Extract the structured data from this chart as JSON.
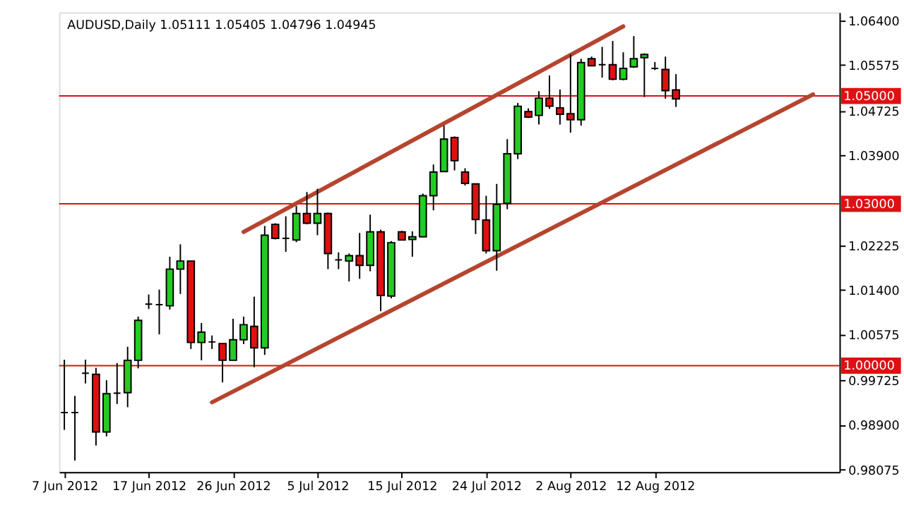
{
  "chart_data": {
    "type": "candlestick",
    "title": "AUDUSD,Daily  1.05111 1.05405 1.04796 1.04945",
    "categories": [
      "7 Jun 2012",
      null,
      null,
      null,
      null,
      null,
      null,
      null,
      "17 Jun 2012",
      null,
      null,
      null,
      null,
      null,
      null,
      null,
      "26 Jun 2012",
      null,
      null,
      null,
      null,
      null,
      null,
      null,
      "5 Jul 2012",
      null,
      null,
      null,
      null,
      null,
      null,
      null,
      "15 Jul 2012",
      null,
      null,
      null,
      null,
      null,
      null,
      null,
      "24 Jul 2012",
      null,
      null,
      null,
      null,
      null,
      null,
      null,
      "2 Aug 2012",
      null,
      null,
      null,
      null,
      null,
      null,
      null,
      "12 Aug 2012",
      null,
      null,
      null,
      null,
      null,
      null,
      null,
      null,
      null,
      null,
      null,
      null,
      null,
      null,
      null,
      null,
      null
    ],
    "ohlc": [
      [
        0.9913,
        1.0011,
        0.9881,
        0.9913
      ],
      [
        0.9913,
        0.9944,
        0.9824,
        0.9913
      ],
      [
        0.9986,
        1.0011,
        0.9967,
        0.9986
      ],
      [
        0.9984,
        0.9996,
        0.9852,
        0.9877
      ],
      [
        0.9877,
        0.9973,
        0.9869,
        0.9948
      ],
      [
        0.9949,
        1.0005,
        0.9929,
        0.9949
      ],
      [
        0.995,
        1.0035,
        0.9923,
        1.001
      ],
      [
        1.001,
        1.0091,
        0.9995,
        1.0084
      ],
      [
        1.0114,
        1.0132,
        1.0105,
        1.0114
      ],
      [
        1.0113,
        1.0141,
        1.0058,
        1.0113
      ],
      [
        1.0111,
        1.0202,
        1.0104,
        1.0179
      ],
      [
        1.0179,
        1.0225,
        1.0133,
        1.0194
      ],
      [
        1.0194,
        1.0194,
        1.0031,
        1.0043
      ],
      [
        1.0043,
        1.0079,
        1.001,
        1.0062
      ],
      [
        1.0044,
        1.0056,
        1.0031,
        1.0044
      ],
      [
        1.0041,
        1.0041,
        0.9969,
        1.001
      ],
      [
        1.001,
        1.0087,
        1.001,
        1.0048
      ],
      [
        1.0048,
        1.0091,
        1.004,
        1.0076
      ],
      [
        1.0073,
        1.0128,
        0.9997,
        1.0033
      ],
      [
        1.0033,
        1.0259,
        1.002,
        1.0242
      ],
      [
        1.0262,
        1.0264,
        1.0234,
        1.0236
      ],
      [
        1.0236,
        1.0277,
        1.0211,
        1.0236
      ],
      [
        1.0233,
        1.0296,
        1.0229,
        1.0282
      ],
      [
        1.0282,
        1.0322,
        1.0262,
        1.0264
      ],
      [
        1.0264,
        1.0328,
        1.0242,
        1.0282
      ],
      [
        1.0282,
        1.0284,
        1.0179,
        1.0208
      ],
      [
        1.0196,
        1.021,
        1.0179,
        1.0196
      ],
      [
        1.0194,
        1.0208,
        1.0156,
        1.0204
      ],
      [
        1.0204,
        1.0246,
        1.0161,
        1.0186
      ],
      [
        1.0186,
        1.028,
        1.0175,
        1.0248
      ],
      [
        1.0248,
        1.0252,
        1.0101,
        1.013
      ],
      [
        1.0129,
        1.0231,
        1.0125,
        1.0228
      ],
      [
        1.0248,
        1.025,
        1.0233,
        1.0233
      ],
      [
        1.0234,
        1.0249,
        1.0202,
        1.0239
      ],
      [
        1.0239,
        1.0319,
        1.0238,
        1.0315
      ],
      [
        1.0315,
        1.0373,
        1.0288,
        1.0359
      ],
      [
        1.036,
        1.0445,
        1.0359,
        1.042
      ],
      [
        1.0423,
        1.0425,
        1.0362,
        1.038
      ],
      [
        1.0359,
        1.0366,
        1.0334,
        1.0338
      ],
      [
        1.0337,
        1.0337,
        1.0244,
        1.0271
      ],
      [
        1.027,
        1.0315,
        1.0208,
        1.0213
      ],
      [
        1.0213,
        1.0337,
        1.0176,
        1.0299
      ],
      [
        1.0301,
        1.042,
        1.029,
        1.0393
      ],
      [
        1.0393,
        1.0487,
        1.0383,
        1.0481
      ],
      [
        1.0471,
        1.0477,
        1.0459,
        1.0461
      ],
      [
        1.0464,
        1.0509,
        1.0447,
        1.0496
      ],
      [
        1.0496,
        1.0538,
        1.0476,
        1.0481
      ],
      [
        1.0478,
        1.0512,
        1.0447,
        1.0466
      ],
      [
        1.0467,
        1.0577,
        1.0432,
        1.0456
      ],
      [
        1.0456,
        1.0569,
        1.0445,
        1.0562
      ],
      [
        1.0569,
        1.0573,
        1.0555,
        1.0556
      ],
      [
        1.0558,
        1.0591,
        1.0534,
        1.0558
      ],
      [
        1.0558,
        1.0602,
        1.0529,
        1.0531
      ],
      [
        1.0531,
        1.0581,
        1.0529,
        1.0551
      ],
      [
        1.0554,
        1.0611,
        1.0552,
        1.0569
      ],
      [
        1.0571,
        1.0579,
        1.0498,
        1.0577
      ],
      [
        1.0551,
        1.0563,
        1.0548,
        1.0551
      ],
      [
        1.0549,
        1.0573,
        1.0495,
        1.051
      ],
      [
        1.05111,
        1.05405,
        1.04796,
        1.04945
      ],
      null,
      null,
      null,
      null,
      null,
      null,
      null,
      null,
      null,
      null,
      null,
      null,
      null,
      null,
      null
    ],
    "colors": [
      "#000000",
      "#000000",
      "#000000",
      "#dd1111",
      "#22cc22",
      "#000000",
      "#22cc22",
      "#22cc22",
      "#000000",
      "#000000",
      "#22cc22",
      "#22cc22",
      "#dd1111",
      "#22cc22",
      "#000000",
      "#dd1111",
      "#22cc22",
      "#22cc22",
      "#dd1111",
      "#22cc22",
      "#dd1111",
      "#000000",
      "#22cc22",
      "#dd1111",
      "#22cc22",
      "#dd1111",
      "#000000",
      "#22cc22",
      "#dd1111",
      "#22cc22",
      "#dd1111",
      "#22cc22",
      "#dd1111",
      "#22cc22",
      "#22cc22",
      "#22cc22",
      "#22cc22",
      "#dd1111",
      "#dd1111",
      "#dd1111",
      "#dd1111",
      "#22cc22",
      "#22cc22",
      "#22cc22",
      "#dd1111",
      "#22cc22",
      "#dd1111",
      "#dd1111",
      "#dd1111",
      "#22cc22",
      "#dd1111",
      "#000000",
      "#dd1111",
      "#22cc22",
      "#22cc22",
      "#22cc22",
      "#000000",
      "#dd1111",
      "#dd1111",
      null,
      null,
      null,
      null,
      null,
      null,
      null,
      null,
      null,
      null,
      null,
      null,
      null,
      null,
      null
    ],
    "series": [
      {
        "type": "line",
        "color": "#b5452f",
        "values": [
          null,
          null,
          null,
          null,
          null,
          null,
          null,
          null,
          null,
          null,
          null,
          null,
          null,
          null,
          null,
          null,
          null,
          1.0248,
          null,
          null,
          null,
          null,
          null,
          null,
          null,
          null,
          null,
          null,
          null,
          null,
          null,
          null,
          null,
          null,
          null,
          null,
          null,
          null,
          null,
          null,
          null,
          null,
          null,
          null,
          null,
          null,
          null,
          null,
          null,
          null,
          null,
          null,
          null,
          1.0629,
          null,
          null,
          null,
          null,
          null,
          null,
          null,
          null,
          null,
          null,
          null,
          null,
          null,
          null,
          null,
          null,
          null,
          null,
          null,
          null
        ]
      },
      {
        "type": "line",
        "color": "#b5452f",
        "values": [
          null,
          null,
          null,
          null,
          null,
          null,
          null,
          null,
          null,
          null,
          null,
          null,
          null,
          null,
          0.9932,
          null,
          null,
          null,
          null,
          null,
          null,
          null,
          null,
          null,
          null,
          null,
          null,
          null,
          null,
          null,
          null,
          null,
          null,
          null,
          null,
          null,
          null,
          null,
          null,
          null,
          null,
          null,
          null,
          null,
          null,
          null,
          null,
          null,
          null,
          null,
          null,
          null,
          null,
          null,
          null,
          null,
          null,
          null,
          null,
          null,
          null,
          null,
          null,
          null,
          null,
          null,
          null,
          null,
          null,
          null,
          null,
          1.0503,
          null,
          null
        ]
      }
    ],
    "ylim": [
      0.9803,
      1.0655
    ],
    "yticks": [
      {
        "value": 1.064,
        "label": "1.06400"
      },
      {
        "value": 1.05575,
        "label": "1.05575"
      },
      {
        "value": 1.04725,
        "label": "1.04725"
      },
      {
        "value": 1.039,
        "label": "1.03900"
      },
      {
        "value": 1.02225,
        "label": "1.02225"
      },
      {
        "value": 1.014,
        "label": "1.01400"
      },
      {
        "value": 1.00575,
        "label": "1.00575"
      },
      {
        "value": 0.99725,
        "label": "0.99725"
      },
      {
        "value": 0.989,
        "label": "0.98900"
      },
      {
        "value": 0.98075,
        "label": "0.98075"
      }
    ],
    "ref_lines": [
      {
        "axis": "y",
        "value": 1.05,
        "label": "1.05000",
        "color": "#dd1111"
      },
      {
        "axis": "y",
        "value": 1.03,
        "label": "1.03000",
        "color": "#dd1111"
      },
      {
        "axis": "y",
        "value": 1.0,
        "label": "1.00000",
        "color": "#dd1111"
      }
    ],
    "grid": false,
    "legend": false
  }
}
